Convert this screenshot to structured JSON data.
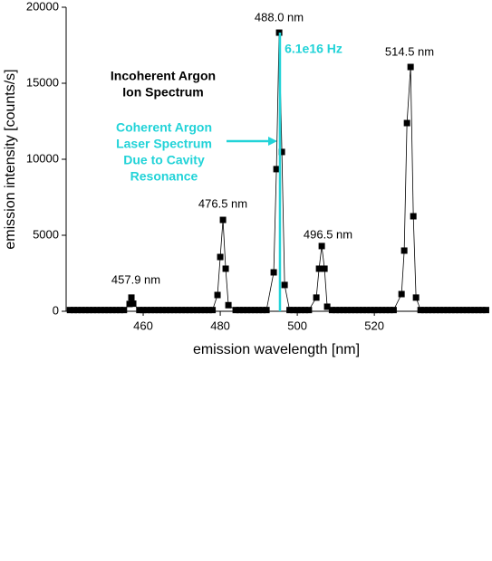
{
  "chart_data": {
    "type": "line",
    "x": [
      441,
      442,
      443,
      444,
      445,
      446,
      447,
      448,
      449,
      450,
      451,
      452,
      453,
      454,
      455,
      456.47,
      456.94,
      457.41,
      459,
      460,
      461,
      462,
      463,
      464,
      465,
      466,
      467,
      468,
      469,
      470,
      471,
      472,
      473,
      474,
      475,
      476,
      477,
      478,
      479.29,
      480.0,
      480.71,
      481.41,
      482.12,
      484,
      485,
      486,
      487,
      488,
      489,
      490,
      491,
      492,
      493.88,
      494.59,
      495.29,
      496.0,
      496.71,
      498,
      499,
      500,
      501,
      502,
      503,
      504.94,
      505.65,
      506.35,
      507.06,
      507.76,
      509,
      510,
      511,
      512,
      513,
      514,
      515,
      516,
      517,
      518,
      519,
      520,
      521,
      522,
      523,
      524,
      525,
      527.06,
      527.76,
      528.47,
      529.41,
      530.12,
      530.82,
      532,
      533,
      534,
      535,
      536,
      537,
      538,
      539,
      540,
      541,
      542,
      543,
      544,
      545,
      546,
      547,
      548,
      549
    ],
    "series": [
      {
        "color": "#000000",
        "values": [
          80,
          80,
          80,
          80,
          80,
          80,
          80,
          80,
          80,
          80,
          80,
          80,
          80,
          80,
          80,
          480,
          900,
          500,
          80,
          80,
          80,
          80,
          80,
          80,
          80,
          80,
          80,
          80,
          80,
          80,
          80,
          80,
          80,
          80,
          80,
          80,
          80,
          80,
          1070,
          3570,
          6010,
          2800,
          400,
          80,
          80,
          80,
          80,
          80,
          80,
          80,
          80,
          80,
          2560,
          9350,
          18330,
          10480,
          1730,
          80,
          80,
          80,
          80,
          80,
          80,
          900,
          2800,
          4290,
          2800,
          300,
          80,
          80,
          80,
          80,
          80,
          80,
          80,
          80,
          80,
          80,
          80,
          80,
          80,
          80,
          80,
          80,
          80,
          1130,
          3990,
          12380,
          16070,
          6250,
          900,
          80,
          80,
          80,
          80,
          80,
          80,
          80,
          80,
          80,
          80,
          80,
          80,
          80,
          80,
          80,
          80,
          80,
          80
        ]
      }
    ],
    "laser_line": {
      "x": 495.5,
      "value": 18330,
      "color": "#22d3d8"
    },
    "xlabel": "emission wavelength [nm]",
    "ylabel": "emission intensity [counts/s]",
    "xlim": [
      440,
      549.6
    ],
    "xticks": [
      460,
      480,
      500,
      520
    ],
    "ylim": [
      0,
      20000
    ],
    "yticks": [
      0,
      5000,
      10000,
      15000,
      20000
    ],
    "annotations": [
      "457.9 nm",
      "476.5 nm",
      "488.0 nm",
      "496.5 nm",
      "514.5 nm",
      "6.1e16 Hz",
      "Incoherent Argon",
      "Ion Spectrum",
      "Coherent Argon",
      "Laser Spectrum",
      "Due to Cavity",
      "Resonance"
    ]
  }
}
